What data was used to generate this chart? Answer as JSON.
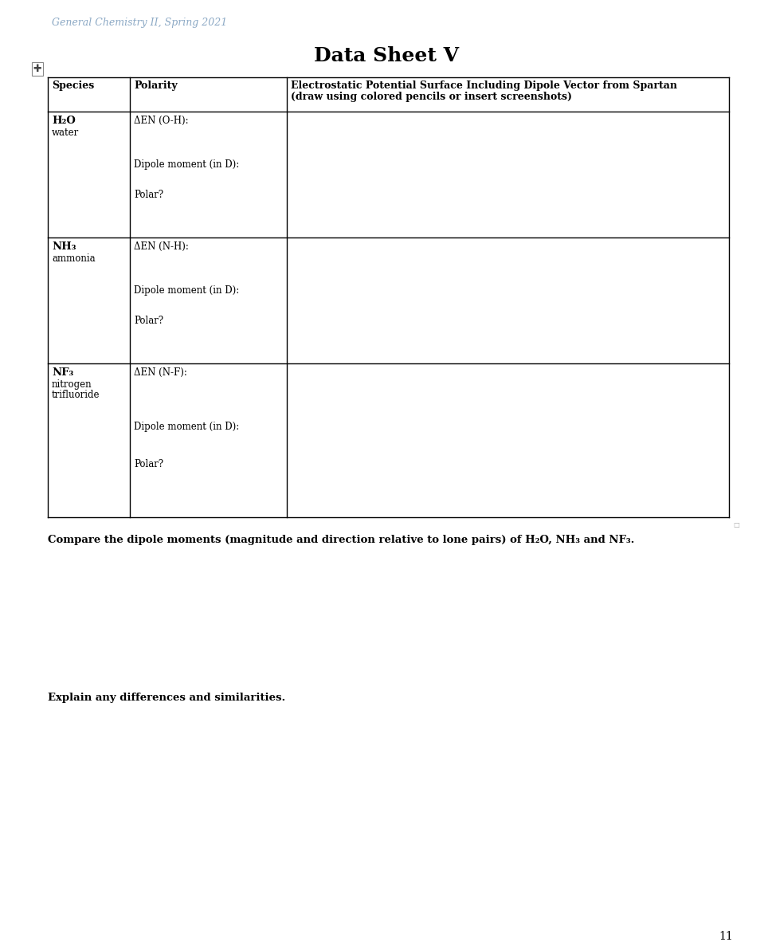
{
  "title": "Data Sheet V",
  "header_text": "General Chemistry II, Spring 2021",
  "page_number": "11",
  "background_color": "#ffffff",
  "col1_header": "Species",
  "col2_header": "Polarity",
  "col3_header": "Electrostatic Potential Surface Including Dipole Vector from Spartan\n(draw using colored pencils or insert screenshots)",
  "rows": [
    {
      "species_bold": "H₂O",
      "species_sub": "water",
      "col2_line1": "ΔEN (O-H):",
      "col2_line2": "Dipole moment (in D):",
      "col2_line3": "Polar?"
    },
    {
      "species_bold": "NH₃",
      "species_sub": "ammonia",
      "col2_line1": "ΔEN (N-H):",
      "col2_line2": "Dipole moment (in D):",
      "col2_line3": "Polar?"
    },
    {
      "species_bold": "NF₃",
      "species_sub": "nitrogen\ntrifluoride",
      "col2_line1": "ΔEN (N-F):",
      "col2_line2": "Dipole moment (in D):",
      "col2_line3": "Polar?"
    }
  ],
  "question1": "Compare the dipole moments (magnitude and direction relative to lone pairs) of H₂O, NH₃ and NF₃.",
  "question2": "Explain any differences and similarities.",
  "header_color": "#8ca9c5",
  "text_color": "#000000",
  "grid_color": "#000000"
}
